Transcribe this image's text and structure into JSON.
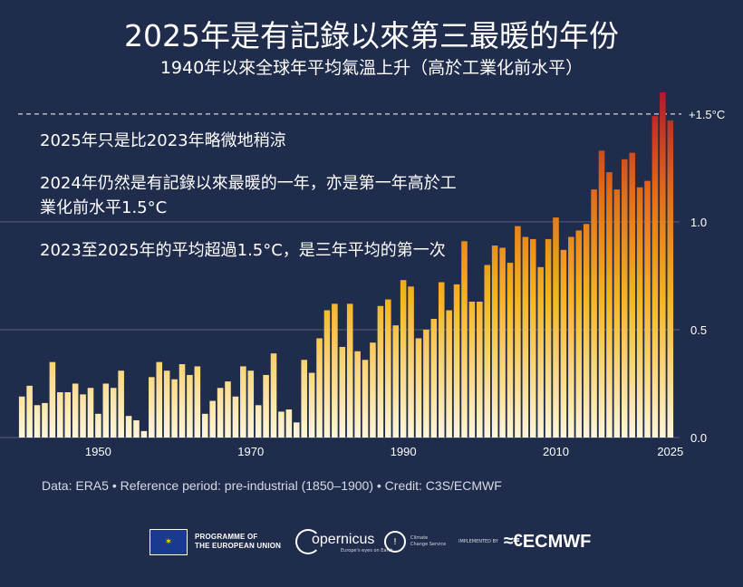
{
  "title": "2025年是有記錄以來第三最暖的年份",
  "subtitle": "1940年以來全球年平均氣溫上升（高於工業化前水平）",
  "notes": [
    "2025年只是比2023年略微地稍涼",
    "2024年仍然是有記錄以來最暖的一年，亦是第一年高於工業化前水平1.5°C",
    "2023至2025年的平均超過1.5°C，是三年平均的第一次"
  ],
  "footer_note": "Data: ERA5 • Reference period: pre-industrial (1850–1900) • Credit: C3S/ECMWF",
  "logos": {
    "eu_line1": "PROGRAMME OF",
    "eu_line2": "THE EUROPEAN UNION",
    "copernicus": "opernicus",
    "copernicus_tagline": "Europe's eyes on Earth",
    "c3s_line1": "Climate",
    "c3s_line2": "Change Service",
    "implemented_by": "IMPLEMENTED BY",
    "ecmwf_mark": "≈€",
    "ecmwf": "ECMWF"
  },
  "colors": {
    "background": "#1f2c4b",
    "bar_low": "#fff6da",
    "bar_mid": "#f5b521",
    "bar_orange": "#e06a1a",
    "bar_high": "#b3192b",
    "gridline": "#55607e",
    "threshold_line": "#ffffff"
  },
  "chart_data": {
    "type": "bar",
    "x": [
      1940,
      1941,
      1942,
      1943,
      1944,
      1945,
      1946,
      1947,
      1948,
      1949,
      1950,
      1951,
      1952,
      1953,
      1954,
      1955,
      1956,
      1957,
      1958,
      1959,
      1960,
      1961,
      1962,
      1963,
      1964,
      1965,
      1966,
      1967,
      1968,
      1969,
      1970,
      1971,
      1972,
      1973,
      1974,
      1975,
      1976,
      1977,
      1978,
      1979,
      1980,
      1981,
      1982,
      1983,
      1984,
      1985,
      1986,
      1987,
      1988,
      1989,
      1990,
      1991,
      1992,
      1993,
      1994,
      1995,
      1996,
      1997,
      1998,
      1999,
      2000,
      2001,
      2002,
      2003,
      2004,
      2005,
      2006,
      2007,
      2008,
      2009,
      2010,
      2011,
      2012,
      2013,
      2014,
      2015,
      2016,
      2017,
      2018,
      2019,
      2020,
      2021,
      2022,
      2023,
      2024,
      2025
    ],
    "values": [
      0.19,
      0.24,
      0.15,
      0.16,
      0.35,
      0.21,
      0.21,
      0.25,
      0.2,
      0.23,
      0.11,
      0.25,
      0.23,
      0.31,
      0.1,
      0.08,
      0.03,
      0.28,
      0.35,
      0.31,
      0.27,
      0.34,
      0.29,
      0.33,
      0.11,
      0.17,
      0.23,
      0.26,
      0.19,
      0.33,
      0.31,
      0.15,
      0.29,
      0.39,
      0.12,
      0.13,
      0.07,
      0.36,
      0.3,
      0.46,
      0.59,
      0.62,
      0.42,
      0.62,
      0.4,
      0.36,
      0.44,
      0.61,
      0.64,
      0.52,
      0.73,
      0.7,
      0.46,
      0.5,
      0.55,
      0.72,
      0.59,
      0.71,
      0.91,
      0.63,
      0.63,
      0.8,
      0.89,
      0.88,
      0.81,
      0.98,
      0.93,
      0.92,
      0.79,
      0.92,
      1.02,
      0.87,
      0.93,
      0.96,
      0.99,
      1.15,
      1.33,
      1.23,
      1.15,
      1.29,
      1.32,
      1.16,
      1.19,
      1.49,
      1.6,
      1.47
    ],
    "x_ticks": [
      1950,
      1970,
      1990,
      2010,
      2025
    ],
    "y_ticks": [
      0.0,
      0.5,
      1.0
    ],
    "y_tick_labels": [
      "0.0",
      "0.5",
      "1.0"
    ],
    "threshold": {
      "value": 1.5,
      "label": "+1.5°C"
    },
    "ylim": [
      0,
      1.6
    ],
    "grid": true
  }
}
